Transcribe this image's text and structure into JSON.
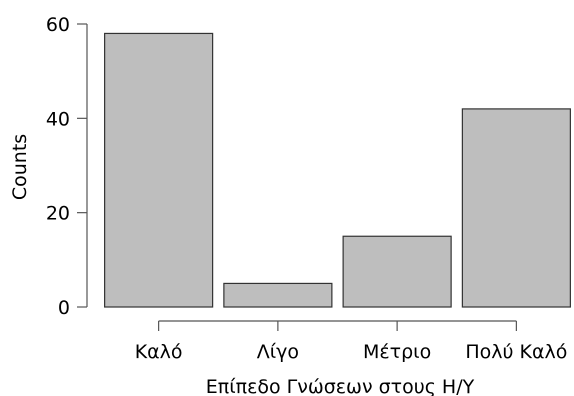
{
  "chart_data": {
    "type": "bar",
    "categories": [
      "Καλό",
      "Λίγο",
      "Μέτριο",
      "Πολύ Καλό"
    ],
    "values": [
      58,
      5,
      15,
      42
    ],
    "xlabel": "Επίπεδο Γνώσεων στους Η/Υ",
    "ylabel": "Counts",
    "ylim": [
      0,
      60
    ],
    "yticks": [
      0,
      20,
      40,
      60
    ],
    "grid": false,
    "colors": {
      "bar_fill": "#bebebe",
      "bar_stroke": "#333333",
      "axis": "#555555",
      "text": "#000000"
    }
  }
}
